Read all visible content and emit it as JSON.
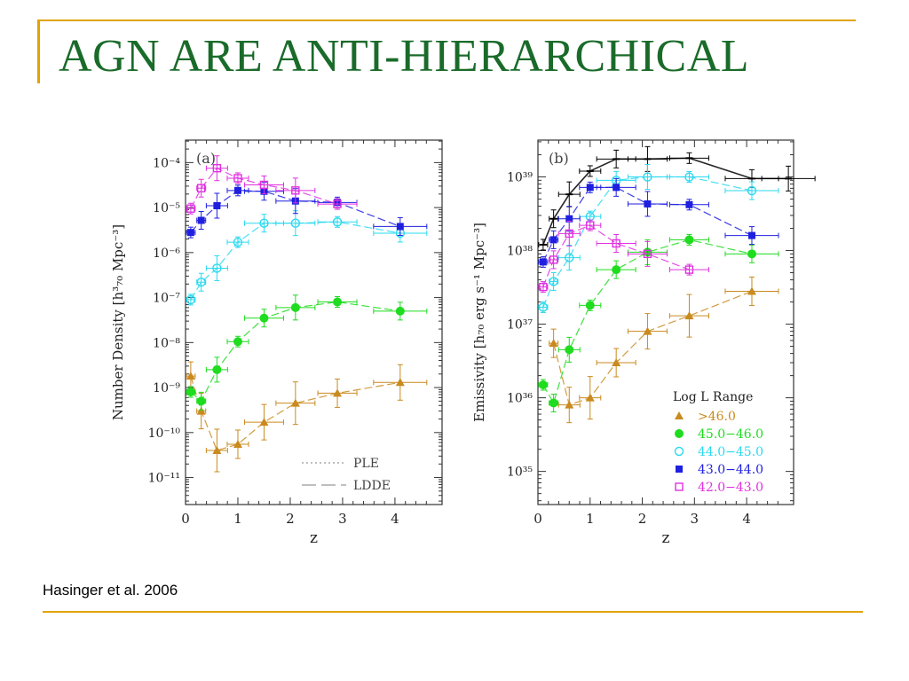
{
  "slide": {
    "title": "AGN ARE ANTI-HIERARCHICAL",
    "citation": "Hasinger et al. 2006"
  },
  "colors": {
    "accent_line": "#e0a400",
    "title": "#1a6b2a",
    "series": [
      "#c98a1e",
      "#1fdc1f",
      "#2ad9f0",
      "#1f1fe0",
      "#e030e0",
      "#000000"
    ]
  },
  "chart_data": [
    {
      "type": "scatter",
      "panel_label": "(a)",
      "xlabel": "z",
      "ylabel": "Number Density [h³₇₀ Mpc⁻³]",
      "x_ticks": [
        "0",
        "1",
        "2",
        "3",
        "4"
      ],
      "y_ticks": [
        "10⁻⁴",
        "10⁻⁵",
        "10⁻⁶",
        "10⁻⁷",
        "10⁻⁸",
        "10⁻⁹",
        "10⁻¹⁰",
        "10⁻¹¹"
      ],
      "xlim": [
        0,
        4.9
      ],
      "ylim_log10": [
        -11.6,
        -3.5
      ],
      "log_y": true,
      "model_legend": [
        {
          "label": "PLE",
          "style": "dotted"
        },
        {
          "label": "LDDE",
          "style": "dashed"
        }
      ],
      "series": [
        {
          "range": ">46.0",
          "marker": "triangle",
          "color": "#c98a1e",
          "x": [
            0.1,
            0.3,
            0.6,
            1.0,
            1.5,
            2.1,
            2.9,
            4.1
          ],
          "y": [
            1.8e-09,
            3e-10,
            4e-11,
            5.5e-11,
            1.7e-10,
            4.5e-10,
            7.5e-10,
            1.3e-09
          ]
        },
        {
          "range": "45.0–46.0",
          "marker": "filled-circle",
          "color": "#1fdc1f",
          "x": [
            0.1,
            0.3,
            0.6,
            1.0,
            1.5,
            2.1,
            2.9,
            4.1
          ],
          "y": [
            8e-10,
            5e-10,
            2.5e-09,
            1.05e-08,
            3.5e-08,
            6e-08,
            8e-08,
            5e-08
          ]
        },
        {
          "range": "44.0–45.0",
          "marker": "open-circle",
          "color": "#2ad9f0",
          "x": [
            0.1,
            0.3,
            0.6,
            1.0,
            1.5,
            2.1,
            2.9,
            4.1
          ],
          "y": [
            9e-08,
            2.2e-07,
            4.5e-07,
            1.7e-06,
            4.5e-06,
            4.5e-06,
            4.8e-06,
            2.7e-06
          ]
        },
        {
          "range": "43.0–44.0",
          "marker": "filled-square",
          "color": "#1f1fe0",
          "x": [
            0.1,
            0.3,
            0.6,
            1.0,
            1.5,
            2.1,
            2.9,
            4.1
          ],
          "y": [
            2.8e-06,
            5.2e-06,
            1.1e-05,
            2.4e-05,
            2.3e-05,
            1.4e-05,
            1.3e-05,
            3.8e-06
          ]
        },
        {
          "range": "42.0–43.0",
          "marker": "open-square",
          "color": "#e030e0",
          "x": [
            0.1,
            0.3,
            0.6,
            1.0,
            1.5,
            2.1,
            2.9
          ],
          "y": [
            9.5e-06,
            2.7e-05,
            7.5e-05,
            4.5e-05,
            3.2e-05,
            2.4e-05,
            1.2e-05
          ]
        }
      ]
    },
    {
      "type": "scatter",
      "panel_label": "(b)",
      "xlabel": "z",
      "ylabel": "Emissivity [h₇₀ erg s⁻¹ Mpc⁻³]",
      "x_ticks": [
        "0",
        "1",
        "2",
        "3",
        "4"
      ],
      "y_ticks": [
        "10³⁹",
        "10³⁸",
        "10³⁷",
        "10³⁶",
        "10³⁵"
      ],
      "xlim": [
        0,
        4.9
      ],
      "ylim_log10": [
        34.55,
        39.5
      ],
      "log_y": true,
      "legend": {
        "title": "Log L Range",
        "position": "bottom-right",
        "entries": [
          ">46.0",
          "45.0−46.0",
          "44.0−45.0",
          "43.0−44.0",
          "42.0−43.0"
        ]
      },
      "series": [
        {
          "range": "total",
          "marker": "cross",
          "color": "#000000",
          "x": [
            0.1,
            0.3,
            0.6,
            1.0,
            1.5,
            2.1,
            2.9,
            4.1,
            4.8
          ],
          "y": [
            1.2e+38,
            2.7e+38,
            5.8e+38,
            1.2e+39,
            1.75e+39,
            1.75e+39,
            1.8e+39,
            9.5e+38,
            9.5e+38
          ]
        },
        {
          "range": ">46.0",
          "marker": "triangle",
          "color": "#c98a1e",
          "x": [
            0.3,
            0.6,
            1.0,
            1.5,
            2.1,
            2.9,
            4.1
          ],
          "y": [
            5.5e+36,
            8e+35,
            1e+36,
            3e+36,
            8e+36,
            1.3e+37,
            2.8e+37
          ]
        },
        {
          "range": "45.0–46.0",
          "marker": "filled-circle",
          "color": "#1fdc1f",
          "x": [
            0.1,
            0.3,
            0.6,
            1.0,
            1.5,
            2.1,
            2.9,
            4.1
          ],
          "y": [
            1.5e+36,
            8.5e+35,
            4.5e+36,
            1.8e+37,
            5.5e+37,
            9.5e+37,
            1.4e+38,
            9e+37
          ]
        },
        {
          "range": "44.0–45.0",
          "marker": "open-circle",
          "color": "#2ad9f0",
          "x": [
            0.1,
            0.3,
            0.6,
            1.0,
            1.5,
            2.1,
            2.9,
            4.1
          ],
          "y": [
            1.7e+37,
            3.8e+37,
            8e+37,
            2.9e+38,
            9e+38,
            1e+39,
            1e+39,
            6.5e+38
          ]
        },
        {
          "range": "43.0–44.0",
          "marker": "filled-square",
          "color": "#1f1fe0",
          "x": [
            0.1,
            0.3,
            0.6,
            1.0,
            1.5,
            2.1,
            2.9,
            4.1
          ],
          "y": [
            7e+37,
            1.4e+38,
            2.7e+38,
            7.2e+38,
            7.2e+38,
            4.3e+38,
            4.2e+38,
            1.6e+38
          ]
        },
        {
          "range": "42.0–43.0",
          "marker": "open-square",
          "color": "#e030e0",
          "x": [
            0.1,
            0.3,
            0.6,
            1.0,
            1.5,
            2.1,
            2.9
          ],
          "y": [
            3.2e+37,
            7.5e+37,
            1.7e+38,
            2.2e+38,
            1.25e+38,
            9e+37,
            5.5e+37
          ]
        }
      ]
    }
  ]
}
